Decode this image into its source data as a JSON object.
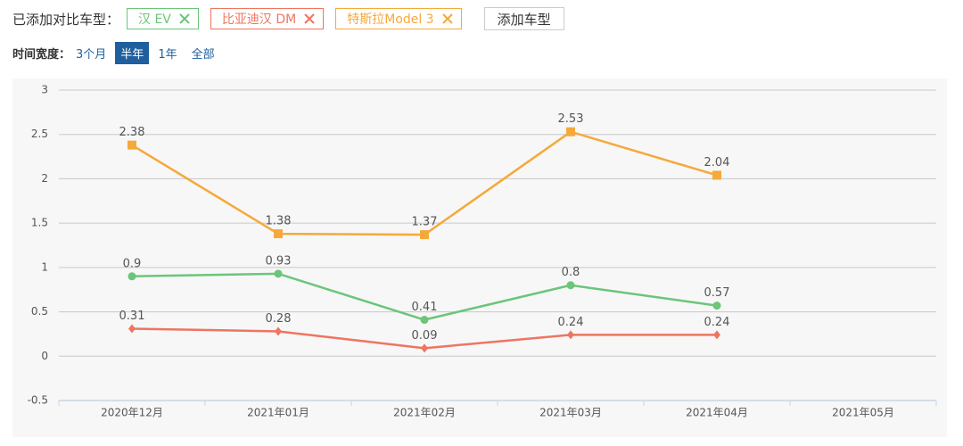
{
  "compare_label": "已添加对比车型：",
  "add_button": "添加车型",
  "time_label": "时间宽度：",
  "time_options": [
    "3个月",
    "半年",
    "1年",
    "全部"
  ],
  "selected_time_option": 1,
  "chart_data": {
    "type": "line",
    "categories": [
      "2020年12月",
      "2021年01月",
      "2021年02月",
      "2021年03月",
      "2021年04月",
      "2021年05月"
    ],
    "series": [
      {
        "name": "汉 EV",
        "color": "#6cc57a",
        "marker": "circle",
        "values": [
          0.9,
          0.93,
          0.41,
          0.8,
          0.57,
          null
        ]
      },
      {
        "name": "比亚迪汉 DM",
        "color": "#ee7560",
        "marker": "diamond",
        "values": [
          0.31,
          0.28,
          0.09,
          0.24,
          0.24,
          null
        ]
      },
      {
        "name": "特斯拉Model 3",
        "color": "#f5a93a",
        "marker": "square",
        "values": [
          2.38,
          1.38,
          1.37,
          2.53,
          2.04,
          null
        ]
      }
    ],
    "ylim": [
      -0.5,
      3
    ],
    "yticks": [
      -0.5,
      0,
      0.5,
      1,
      1.5,
      2,
      2.5,
      3
    ],
    "grid": true,
    "data_labels": true
  }
}
